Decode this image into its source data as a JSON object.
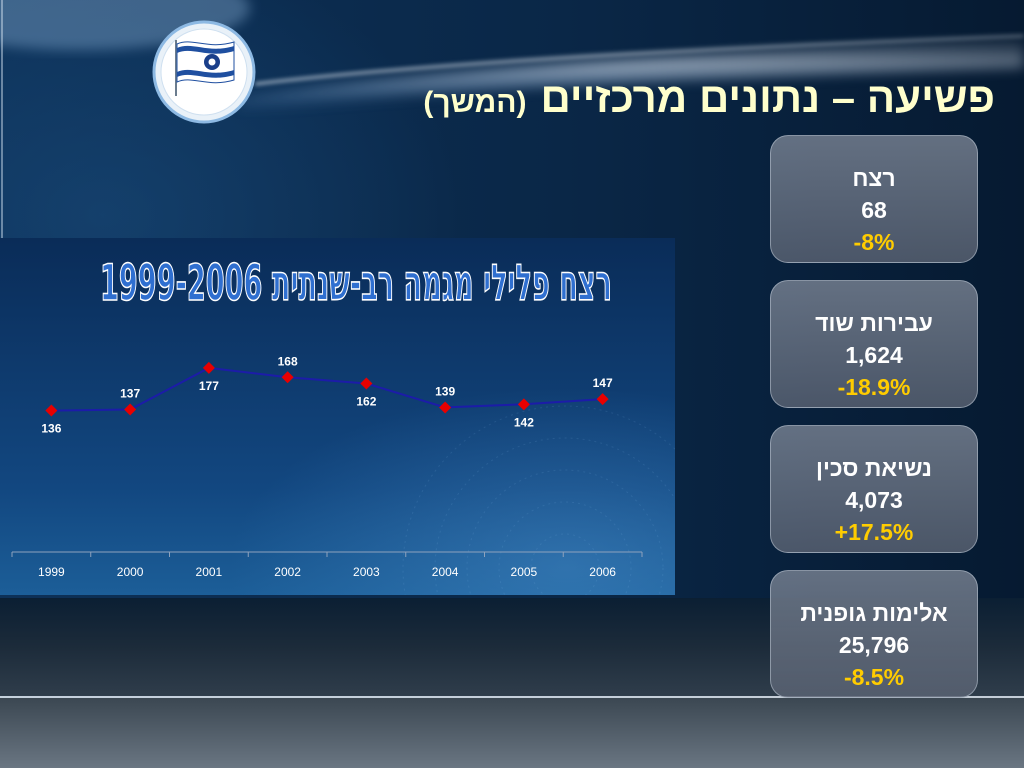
{
  "slide": {
    "title": "פשיעה – נתונים מרכזיים",
    "title_suffix": "(המשך)",
    "logo_icon": "police-flag-emblem-icon",
    "colors": {
      "title": "#FFFFCC",
      "stat_text": "#FFFFFF",
      "stat_change": "#FFCC00"
    }
  },
  "stats": [
    {
      "label": "רצח",
      "value": "68",
      "change": "-8%"
    },
    {
      "label": "עבירות שוד",
      "value": "1,624",
      "change": "-18.9%"
    },
    {
      "label": "נשיאת סכין",
      "value": "4,073",
      "change": "+17.5%"
    },
    {
      "label": "אלימות גופנית",
      "value": "25,796",
      "change": "-8.5%"
    }
  ],
  "chart_data": {
    "type": "line",
    "title": "רצח פלילי מגמה רב-שנתית 1999-2006",
    "categories": [
      "1999",
      "2000",
      "2001",
      "2002",
      "2003",
      "2004",
      "2005",
      "2006"
    ],
    "values": [
      136,
      137,
      177,
      168,
      162,
      139,
      142,
      147
    ],
    "ylim": [
      0,
      200
    ],
    "grid": false,
    "data_labels": true,
    "colors": {
      "line": "#1C1CA8",
      "marker": "#E80000",
      "labels": "#FFFFFF",
      "title_fill": "#2F6FD0",
      "title_outline": "#FFFFFF"
    }
  }
}
